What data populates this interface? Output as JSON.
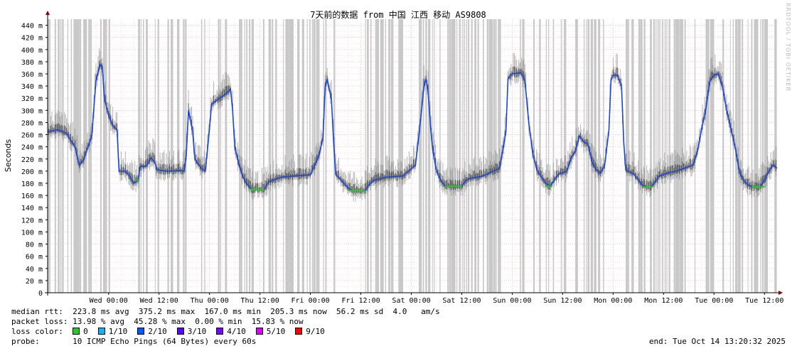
{
  "chart_data": {
    "type": "line",
    "title": "7天前的数据 from 中国 江西 移动 AS9808",
    "ylabel": "Seconds",
    "ylim": [
      0,
      450
    ],
    "y_ticks": [
      {
        "v": 0,
        "label": "0"
      },
      {
        "v": 20,
        "label": "20 m"
      },
      {
        "v": 40,
        "label": "40 m"
      },
      {
        "v": 60,
        "label": "60 m"
      },
      {
        "v": 80,
        "label": "80 m"
      },
      {
        "v": 100,
        "label": "100 m"
      },
      {
        "v": 120,
        "label": "120 m"
      },
      {
        "v": 140,
        "label": "140 m"
      },
      {
        "v": 160,
        "label": "160 m"
      },
      {
        "v": 180,
        "label": "180 m"
      },
      {
        "v": 200,
        "label": "200 m"
      },
      {
        "v": 220,
        "label": "220 m"
      },
      {
        "v": 240,
        "label": "240 m"
      },
      {
        "v": 260,
        "label": "260 m"
      },
      {
        "v": 280,
        "label": "280 m"
      },
      {
        "v": 300,
        "label": "300 m"
      },
      {
        "v": 320,
        "label": "320 m"
      },
      {
        "v": 340,
        "label": "340 m"
      },
      {
        "v": 360,
        "label": "360 m"
      },
      {
        "v": 380,
        "label": "380 m"
      },
      {
        "v": 400,
        "label": "400 m"
      },
      {
        "v": 420,
        "label": "420 m"
      },
      {
        "v": 440,
        "label": "440 m"
      }
    ],
    "x_range_hours": [
      -14.5,
      159
    ],
    "x_ticks": [
      {
        "h": 0,
        "label": "Wed 00:00"
      },
      {
        "h": 12,
        "label": "Wed 12:00"
      },
      {
        "h": 24,
        "label": "Thu 00:00"
      },
      {
        "h": 36,
        "label": "Thu 12:00"
      },
      {
        "h": 48,
        "label": "Fri 00:00"
      },
      {
        "h": 60,
        "label": "Fri 12:00"
      },
      {
        "h": 72,
        "label": "Sat 00:00"
      },
      {
        "h": 84,
        "label": "Sat 12:00"
      },
      {
        "h": 96,
        "label": "Sun 00:00"
      },
      {
        "h": 108,
        "label": "Sun 12:00"
      },
      {
        "h": 120,
        "label": "Mon 00:00"
      },
      {
        "h": 132,
        "label": "Mon 12:00"
      },
      {
        "h": 144,
        "label": "Tue 00:00"
      },
      {
        "h": 156,
        "label": "Tue 12:00"
      }
    ],
    "grid": true,
    "series": [
      {
        "name": "median rtt",
        "color": "#1a46d8",
        "points": [
          [
            -14.5,
            265
          ],
          [
            -12,
            268
          ],
          [
            -10,
            262
          ],
          [
            -8,
            240
          ],
          [
            -7,
            210
          ],
          [
            -6,
            218
          ],
          [
            -4,
            258
          ],
          [
            -3,
            350
          ],
          [
            -2,
            375
          ],
          [
            -1.5,
            372
          ],
          [
            -1,
            320
          ],
          [
            0,
            292
          ],
          [
            1,
            275
          ],
          [
            2,
            268
          ],
          [
            2.5,
            200
          ],
          [
            4,
            200
          ],
          [
            5,
            192
          ],
          [
            6,
            180
          ],
          [
            7,
            185
          ],
          [
            7.5,
            208
          ],
          [
            9,
            208
          ],
          [
            10,
            222
          ],
          [
            11,
            215
          ],
          [
            11.5,
            202
          ],
          [
            14,
            200
          ],
          [
            17,
            201
          ],
          [
            18,
            200
          ],
          [
            18.5,
            228
          ],
          [
            19,
            300
          ],
          [
            20,
            265
          ],
          [
            20.5,
            220
          ],
          [
            22,
            205
          ],
          [
            23,
            200
          ],
          [
            24,
            270
          ],
          [
            24.5,
            310
          ],
          [
            26,
            318
          ],
          [
            27.5,
            325
          ],
          [
            29,
            335
          ],
          [
            29.5,
            300
          ],
          [
            30,
            240
          ],
          [
            31,
            210
          ],
          [
            32,
            190
          ],
          [
            33,
            178
          ],
          [
            34,
            170
          ],
          [
            37,
            170
          ],
          [
            38,
            182
          ],
          [
            39,
            185
          ],
          [
            41,
            190
          ],
          [
            44,
            192
          ],
          [
            48,
            194
          ],
          [
            50,
            225
          ],
          [
            51,
            255
          ],
          [
            51.5,
            340
          ],
          [
            52,
            350
          ],
          [
            53,
            318
          ],
          [
            53.5,
            250
          ],
          [
            54,
            195
          ],
          [
            56,
            180
          ],
          [
            57,
            172
          ],
          [
            58,
            168
          ],
          [
            61,
            168
          ],
          [
            62,
            178
          ],
          [
            63,
            185
          ],
          [
            66,
            190
          ],
          [
            70,
            192
          ],
          [
            73,
            210
          ],
          [
            74,
            270
          ],
          [
            75,
            340
          ],
          [
            75.5,
            352
          ],
          [
            76,
            330
          ],
          [
            76.5,
            280
          ],
          [
            77,
            240
          ],
          [
            78,
            200
          ],
          [
            79,
            185
          ],
          [
            80,
            176
          ],
          [
            81,
            175
          ],
          [
            84,
            175
          ],
          [
            85,
            185
          ],
          [
            86,
            188
          ],
          [
            89,
            192
          ],
          [
            93,
            205
          ],
          [
            94.5,
            265
          ],
          [
            95,
            352
          ],
          [
            96,
            360
          ],
          [
            98,
            362
          ],
          [
            99,
            350
          ],
          [
            100,
            275
          ],
          [
            101,
            225
          ],
          [
            102,
            200
          ],
          [
            103,
            190
          ],
          [
            104,
            180
          ],
          [
            105,
            175
          ],
          [
            106,
            185
          ],
          [
            107,
            195
          ],
          [
            109,
            200
          ],
          [
            110,
            222
          ],
          [
            111,
            232
          ],
          [
            112,
            258
          ],
          [
            113,
            248
          ],
          [
            114,
            245
          ],
          [
            115,
            215
          ],
          [
            116,
            202
          ],
          [
            117,
            197
          ],
          [
            118,
            210
          ],
          [
            119,
            268
          ],
          [
            119.5,
            350
          ],
          [
            120,
            358
          ],
          [
            121,
            358
          ],
          [
            122,
            340
          ],
          [
            122.5,
            250
          ],
          [
            123,
            202
          ],
          [
            125,
            195
          ],
          [
            126,
            185
          ],
          [
            127,
            177
          ],
          [
            128,
            174
          ],
          [
            129,
            174
          ],
          [
            130,
            182
          ],
          [
            131,
            192
          ],
          [
            133,
            197
          ],
          [
            135,
            200
          ],
          [
            137,
            205
          ],
          [
            139,
            210
          ],
          [
            140,
            230
          ],
          [
            141,
            268
          ],
          [
            142,
            300
          ],
          [
            143,
            348
          ],
          [
            144,
            358
          ],
          [
            145,
            360
          ],
          [
            146,
            340
          ],
          [
            147,
            300
          ],
          [
            148,
            270
          ],
          [
            149,
            240
          ],
          [
            150,
            200
          ],
          [
            151,
            185
          ],
          [
            152,
            178
          ],
          [
            153,
            174
          ],
          [
            155,
            174
          ],
          [
            156,
            185
          ],
          [
            157,
            200
          ],
          [
            158,
            210
          ],
          [
            159,
            205
          ]
        ]
      }
    ],
    "loss_runs": [
      [
        -14.5,
        -4
      ],
      [
        -2,
        2
      ],
      [
        7,
        9.5
      ],
      [
        11,
        13
      ],
      [
        14,
        18.5
      ],
      [
        22,
        23
      ],
      [
        26,
        28
      ],
      [
        31,
        45
      ],
      [
        46,
        52
      ],
      [
        53.5,
        55
      ],
      [
        61,
        70
      ],
      [
        73,
        88
      ],
      [
        89,
        94.5
      ],
      [
        97,
        99
      ],
      [
        101,
        103
      ],
      [
        104,
        109
      ],
      [
        111,
        112
      ],
      [
        113,
        118
      ],
      [
        123,
        125
      ],
      [
        126,
        140
      ],
      [
        142,
        144
      ],
      [
        146,
        151
      ],
      [
        152,
        154
      ],
      [
        155,
        159
      ]
    ],
    "green_segments": [
      [
        6.2,
        7.3
      ],
      [
        33.5,
        37
      ],
      [
        57,
        61
      ],
      [
        80,
        84
      ],
      [
        104,
        105.5
      ],
      [
        127,
        129.5
      ],
      [
        153,
        156
      ]
    ]
  },
  "stats": {
    "median_rtt_label": "median rtt:",
    "median_rtt_values": "223.8 ms avg  375.2 ms max  167.0 ms min  205.3 ms now  56.2 ms sd  4.0   am/s",
    "packet_loss_label": "packet loss:",
    "packet_loss_values": "13.98 % avg  45.28 % max  0.00 % min  15.83 % now",
    "loss_color_label": "loss color:",
    "loss_colors": [
      {
        "label": "0",
        "color": "#26cc26"
      },
      {
        "label": "1/10",
        "color": "#00b8ff"
      },
      {
        "label": "2/10",
        "color": "#0059ff"
      },
      {
        "label": "3/10",
        "color": "#5e00ff"
      },
      {
        "label": "4/10",
        "color": "#7e00ff"
      },
      {
        "label": "5/10",
        "color": "#dd00ff"
      },
      {
        "label": "9/10",
        "color": "#ff0000"
      }
    ],
    "probe_label": "probe:",
    "probe_value": "10 ICMP Echo Pings (64 Bytes) every 60s",
    "end_text": "end: Tue Oct 14 13:20:32 2025"
  },
  "watermark": "RRDTOOL / TOBI OETIKER"
}
